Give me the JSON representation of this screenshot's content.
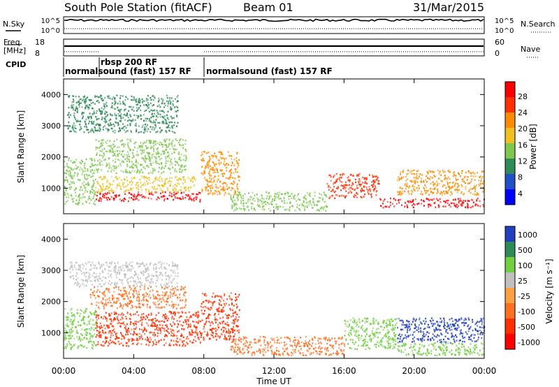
{
  "header": {
    "title": "South Pole Station (fitACF)",
    "beam": "Beam 01",
    "date": "31/Mar/2015"
  },
  "status_strip": {
    "left_labels": {
      "nsky": "N.Sky",
      "freq": "Freq.",
      "freq_unit": "[MHz]",
      "cpid": "CPID"
    },
    "right_labels": {
      "nsearch": "N.Search",
      "nave": "Nave"
    },
    "noise_ticks_left": [
      "10^5",
      "10^0"
    ],
    "noise_ticks_right": [
      "10^5",
      "10^0"
    ],
    "freq_ticks": [
      "18",
      "8"
    ],
    "nave_ticks": [
      "60",
      "0"
    ],
    "cpid_segments": [
      {
        "label": "normalsound (fast) 157 RF"
      },
      {
        "label": "rbsp 200 RF"
      },
      {
        "label": "normalsound (fast) 157 RF"
      }
    ]
  },
  "x_axis": {
    "label": "Time UT",
    "ticks": [
      "00:00",
      "04:00",
      "08:00",
      "12:00",
      "16:00",
      "20:00",
      "00:00"
    ]
  },
  "colors": {
    "power": [
      "#0000ff",
      "#2050c8",
      "#2e8b57",
      "#7ec850",
      "#f0c020",
      "#ff8c00",
      "#ff3000",
      "#ff0000"
    ],
    "velocity": [
      "#2040c0",
      "#2e8b57",
      "#70d040",
      "#c0c0c0",
      "#ffa040",
      "#ff7020",
      "#ff3000",
      "#ff0000"
    ]
  },
  "chart_data": [
    {
      "type": "heatmap",
      "panel": "power",
      "ylabel": "Slant Range [km]",
      "ylim": [
        180,
        4500
      ],
      "yticks": [
        "4000",
        "3000",
        "2000",
        "1000"
      ],
      "xlim_hours": [
        0,
        24
      ],
      "colorbar": {
        "label": "Power [dB]",
        "ticks": [
          "28",
          "24",
          "20",
          "16",
          "12",
          "8",
          "4"
        ],
        "range": [
          0,
          30
        ]
      },
      "regions": [
        {
          "t": [
            1.8,
            7.8
          ],
          "r": [
            600,
            900
          ],
          "value": 28
        },
        {
          "t": [
            7.8,
            10.0
          ],
          "r": [
            800,
            2200
          ],
          "value": 22
        },
        {
          "t": [
            1.8,
            7.5
          ],
          "r": [
            900,
            1400
          ],
          "value": 16
        },
        {
          "t": [
            0.0,
            1.8
          ],
          "r": [
            500,
            2000
          ],
          "value": 12
        },
        {
          "t": [
            1.8,
            7.0
          ],
          "r": [
            1500,
            2600
          ],
          "value": 12
        },
        {
          "t": [
            0.2,
            6.5
          ],
          "r": [
            2800,
            4000
          ],
          "value": 8
        },
        {
          "t": [
            9.5,
            15.0
          ],
          "r": [
            300,
            900
          ],
          "value": 12
        },
        {
          "t": [
            15.0,
            18.0
          ],
          "r": [
            700,
            1500
          ],
          "value": 24
        },
        {
          "t": [
            18.0,
            24.0
          ],
          "r": [
            400,
            700
          ],
          "value": 28
        },
        {
          "t": [
            19.0,
            24.0
          ],
          "r": [
            800,
            1600
          ],
          "value": 20
        }
      ]
    },
    {
      "type": "heatmap",
      "panel": "velocity",
      "ylabel": "Slant Range [km]",
      "ylim": [
        180,
        4500
      ],
      "yticks": [
        "4000",
        "3000",
        "2000",
        "1000"
      ],
      "xlim_hours": [
        0,
        24
      ],
      "colorbar": {
        "label": "Velocity [m s⁻¹]",
        "ticks": [
          "1000",
          "500",
          "100",
          "25",
          "-25",
          "-100",
          "-500",
          "-1000"
        ]
      },
      "regions": [
        {
          "t": [
            1.8,
            7.8
          ],
          "r": [
            600,
            1700
          ],
          "value": -500
        },
        {
          "t": [
            7.8,
            10.0
          ],
          "r": [
            800,
            2300
          ],
          "value": -500
        },
        {
          "t": [
            0.3,
            6.5
          ],
          "r": [
            2500,
            3300
          ],
          "value": 0
        },
        {
          "t": [
            1.5,
            7.0
          ],
          "r": [
            1800,
            2500
          ],
          "value": -100
        },
        {
          "t": [
            0.0,
            1.8
          ],
          "r": [
            500,
            1800
          ],
          "value": 100
        },
        {
          "t": [
            9.5,
            16.0
          ],
          "r": [
            300,
            900
          ],
          "value": -100
        },
        {
          "t": [
            16.0,
            19.0
          ],
          "r": [
            500,
            1500
          ],
          "value": 100
        },
        {
          "t": [
            19.0,
            24.0
          ],
          "r": [
            700,
            1500
          ],
          "value": 1000
        },
        {
          "t": [
            19.0,
            24.0
          ],
          "r": [
            300,
            700
          ],
          "value": 100
        }
      ]
    }
  ]
}
